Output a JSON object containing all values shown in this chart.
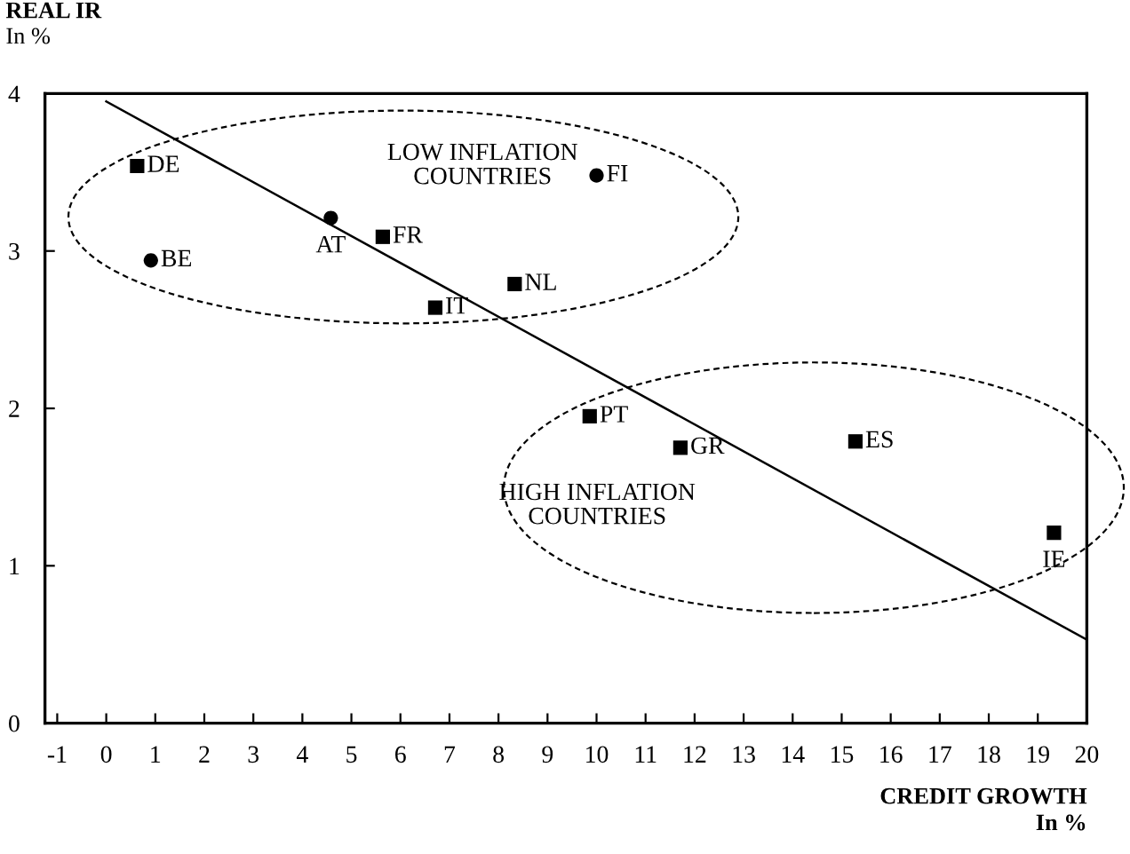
{
  "chart_data": {
    "type": "scatter",
    "xlabel": "CREDIT GROWTH\nIn %",
    "ylabel": "REAL IR\nIn %",
    "xlim": [
      -1.25,
      20
    ],
    "xticks": [
      -1,
      0,
      1,
      2,
      3,
      4,
      5,
      6,
      7,
      8,
      9,
      10,
      11,
      12,
      13,
      14,
      15,
      16,
      17,
      18,
      19,
      20
    ],
    "ylim": [
      0,
      4
    ],
    "yticks": [
      0,
      1,
      2,
      3,
      4
    ],
    "grid": false,
    "series": [
      {
        "type": "scatter",
        "marker": "square",
        "color": "#000000",
        "x": [
          0.63,
          5.64,
          6.71,
          8.33,
          9.86,
          11.71,
          15.28,
          19.33
        ],
        "values": [
          3.54,
          3.09,
          2.64,
          2.79,
          1.95,
          1.75,
          1.79,
          1.21
        ]
      },
      {
        "type": "scatter",
        "marker": "circle",
        "color": "#000000",
        "x": [
          0.91,
          4.58,
          10.0
        ],
        "values": [
          2.94,
          3.21,
          3.48
        ]
      },
      {
        "type": "line",
        "marker": "none",
        "line_style": "solid",
        "color": "#000000",
        "x": [
          0.0,
          20.0
        ],
        "values": [
          3.95,
          0.53
        ]
      }
    ],
    "annotations": [
      "LOW INFLATION\nCOUNTRIES",
      "HIGH INFLATION\nCOUNTRIES",
      {
        "text": "DE",
        "x": 0.63,
        "y": 3.54
      },
      {
        "text": "FR",
        "x": 5.64,
        "y": 3.09
      },
      {
        "text": "IT",
        "x": 6.71,
        "y": 2.64
      },
      {
        "text": "NL",
        "x": 8.33,
        "y": 2.79
      },
      {
        "text": "PT",
        "x": 9.86,
        "y": 1.95
      },
      {
        "text": "GR",
        "x": 11.71,
        "y": 1.75
      },
      {
        "text": "ES",
        "x": 15.28,
        "y": 1.79
      },
      {
        "text": "IE",
        "x": 19.33,
        "y": 1.21
      },
      {
        "text": "BE",
        "x": 0.91,
        "y": 2.94
      },
      {
        "text": "AT",
        "x": 4.58,
        "y": 3.21
      },
      {
        "text": "FI",
        "x": 10.0,
        "y": 3.48
      }
    ]
  }
}
